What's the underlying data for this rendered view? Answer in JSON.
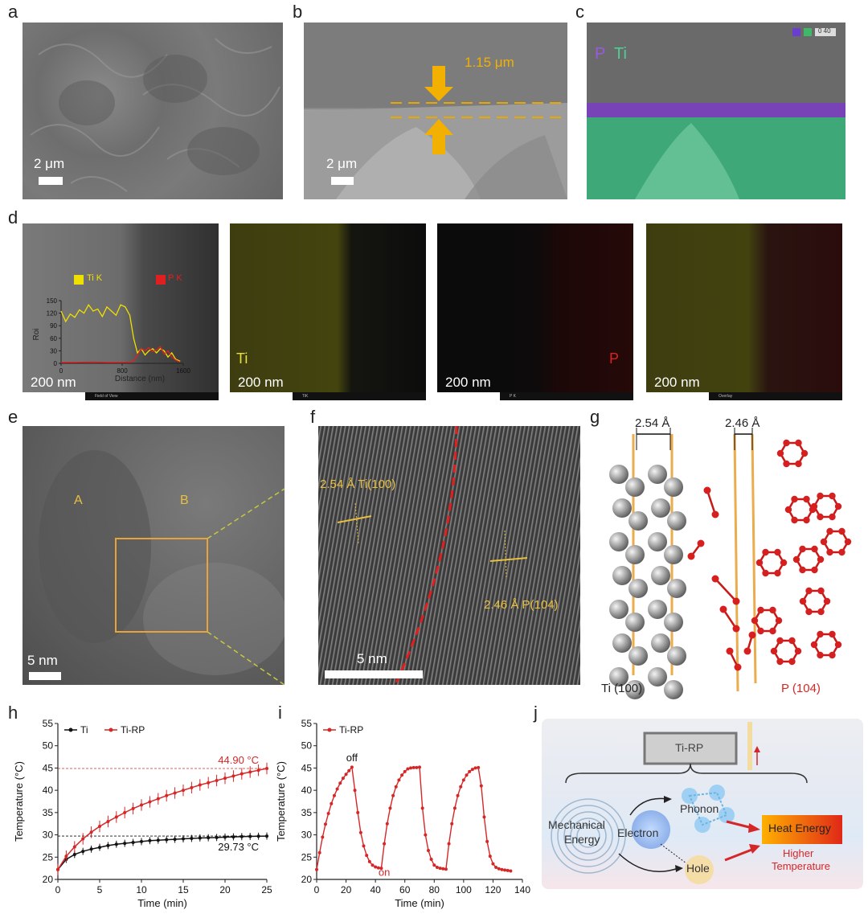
{
  "panels": {
    "a": {
      "letter": "a",
      "scale": "2 μm"
    },
    "b": {
      "letter": "b",
      "scale": "2 μm",
      "thickness": "1.15 μm"
    },
    "c": {
      "letter": "c",
      "elem_p": "P",
      "elem_ti": "Ti",
      "code": "0 40"
    },
    "d": {
      "letter": "d",
      "scale": "200 nm",
      "legend_ti": "Ti K",
      "legend_p": "P K",
      "ylabel": "Roi",
      "xlabel": "Distance (nm)",
      "yticks": [
        "0",
        "30",
        "60",
        "90",
        "120",
        "150"
      ],
      "xticks": [
        "0",
        "800",
        "1600"
      ],
      "maps": [
        {
          "label": "Ti",
          "strip": "TiK"
        },
        {
          "label": "P",
          "strip": "P K"
        },
        {
          "label": "",
          "strip": "Overlay"
        }
      ],
      "strip0": "Field of View"
    },
    "e": {
      "letter": "e",
      "scale": "5 nm",
      "region_a": "A",
      "region_b": "B"
    },
    "f": {
      "letter": "f",
      "scale": "5 nm",
      "ann_ti": "2.54 Å Ti(100)",
      "ann_p": "2.46 Å P(104)"
    },
    "g": {
      "letter": "g",
      "d_ti": "2.54 Å",
      "d_p": "2.46 Å",
      "cap_ti": "Ti (100)",
      "cap_p": "P (104)"
    },
    "h": {
      "letter": "h",
      "series1": "Ti",
      "series2": "Ti-RP",
      "ann_hi": "44.90 °C",
      "ann_lo": "29.73 °C"
    },
    "i": {
      "letter": "i",
      "series": "Ti-RP",
      "off": "off",
      "on": "on"
    },
    "j": {
      "letter": "j",
      "box": "Ti-RP",
      "mech1": "Mechanical",
      "mech2": "Energy",
      "electron": "Electron",
      "phonon": "Phonon",
      "hole": "Hole",
      "heat": "Heat Energy",
      "higher1": "Higher",
      "higher2": "Temperature"
    }
  },
  "colors": {
    "ti": "#f0e000",
    "p": "#e02020",
    "red": "#d62728",
    "black": "#111111",
    "orange": "#e8a43a"
  },
  "chart_data": [
    {
      "type": "line",
      "panel": "d",
      "xlabel": "Distance (nm)",
      "ylabel": "Roi",
      "xlim": [
        0,
        1600
      ],
      "ylim": [
        0,
        150
      ],
      "series": [
        {
          "name": "Ti K",
          "x": [
            0,
            60,
            120,
            180,
            240,
            300,
            360,
            420,
            480,
            540,
            600,
            660,
            720,
            780,
            840,
            900,
            950,
            1000,
            1050,
            1100,
            1150,
            1200,
            1250,
            1300,
            1350,
            1400,
            1450,
            1500,
            1560
          ],
          "values": [
            125,
            100,
            118,
            110,
            128,
            120,
            140,
            125,
            130,
            112,
            135,
            125,
            115,
            140,
            135,
            115,
            60,
            25,
            35,
            20,
            30,
            35,
            25,
            35,
            30,
            15,
            25,
            10,
            5
          ]
        },
        {
          "name": "P K",
          "x": [
            0,
            200,
            400,
            600,
            800,
            900,
            950,
            1000,
            1050,
            1100,
            1150,
            1200,
            1250,
            1300,
            1350,
            1400,
            1450,
            1500,
            1560
          ],
          "values": [
            2,
            2,
            3,
            2,
            2,
            3,
            5,
            20,
            35,
            30,
            38,
            28,
            32,
            40,
            22,
            30,
            15,
            8,
            3
          ]
        }
      ]
    },
    {
      "type": "line",
      "panel": "h",
      "xlabel": "Time (min)",
      "ylabel": "Temperature (°C)",
      "xlim": [
        0,
        25
      ],
      "ylim": [
        20,
        55
      ],
      "xticks": [
        0,
        5,
        10,
        15,
        20,
        25
      ],
      "yticks": [
        20,
        25,
        30,
        35,
        40,
        45,
        50,
        55
      ],
      "series": [
        {
          "name": "Ti",
          "x": [
            0,
            1,
            2,
            3,
            4,
            5,
            6,
            7,
            8,
            9,
            10,
            11,
            12,
            13,
            14,
            15,
            16,
            17,
            18,
            19,
            20,
            21,
            22,
            23,
            24,
            25
          ],
          "values": [
            22.2,
            24.5,
            25.6,
            26.3,
            26.8,
            27.2,
            27.6,
            27.9,
            28.1,
            28.3,
            28.5,
            28.7,
            28.8,
            28.9,
            29.0,
            29.1,
            29.2,
            29.3,
            29.35,
            29.4,
            29.5,
            29.55,
            29.6,
            29.65,
            29.7,
            29.73
          ]
        },
        {
          "name": "Ti-RP",
          "x": [
            0,
            1,
            2,
            3,
            4,
            5,
            6,
            7,
            8,
            9,
            10,
            11,
            12,
            13,
            14,
            15,
            16,
            17,
            18,
            19,
            20,
            21,
            22,
            23,
            24,
            25
          ],
          "values": [
            22.2,
            25.2,
            27.3,
            29.1,
            30.6,
            31.9,
            33.0,
            34.0,
            35.0,
            35.9,
            36.7,
            37.4,
            38.1,
            38.8,
            39.4,
            40.0,
            40.6,
            41.2,
            41.7,
            42.2,
            42.7,
            43.2,
            43.7,
            44.1,
            44.5,
            44.9
          ]
        }
      ],
      "annotations": [
        "44.90 °C",
        "29.73 °C"
      ]
    },
    {
      "type": "line",
      "panel": "i",
      "xlabel": "Time (min)",
      "ylabel": "Temperature (°C)",
      "xlim": [
        0,
        140
      ],
      "ylim": [
        20,
        55
      ],
      "xticks": [
        0,
        20,
        40,
        60,
        80,
        100,
        120,
        140
      ],
      "yticks": [
        20,
        25,
        30,
        35,
        40,
        45,
        50,
        55
      ],
      "series": [
        {
          "name": "Ti-RP",
          "x": [
            0,
            2,
            4,
            6,
            8,
            10,
            12,
            14,
            16,
            18,
            20,
            22,
            24,
            26,
            28,
            30,
            32,
            34,
            36,
            38,
            40,
            42,
            44,
            46,
            48,
            50,
            52,
            54,
            56,
            58,
            60,
            62,
            64,
            66,
            68,
            70,
            72,
            74,
            76,
            78,
            80,
            82,
            84,
            86,
            88,
            90,
            92,
            94,
            96,
            98,
            100,
            102,
            104,
            106,
            108,
            110,
            112,
            114,
            116,
            118,
            120,
            122,
            124,
            126,
            128,
            130,
            132
          ],
          "values": [
            22.2,
            26,
            29.5,
            32.4,
            34.8,
            37,
            38.8,
            40.3,
            41.6,
            42.7,
            43.6,
            44.4,
            45.2,
            40,
            35,
            30.5,
            27.5,
            25.4,
            24,
            23.2,
            22.8,
            22.6,
            22.5,
            28,
            32.5,
            36,
            38.8,
            40.8,
            42.3,
            43.4,
            44.2,
            44.8,
            45,
            45.1,
            45.1,
            45.2,
            36,
            30,
            26.5,
            24.5,
            23.2,
            22.7,
            22.5,
            22.4,
            22.3,
            28,
            32.5,
            36,
            38.8,
            40.8,
            42.3,
            43.4,
            44.2,
            44.7,
            45,
            45.1,
            41,
            34,
            28.5,
            25.2,
            23.5,
            22.7,
            22.4,
            22.2,
            22.1,
            22.0,
            21.9
          ]
        }
      ],
      "annotations": [
        "off",
        "on"
      ]
    }
  ]
}
